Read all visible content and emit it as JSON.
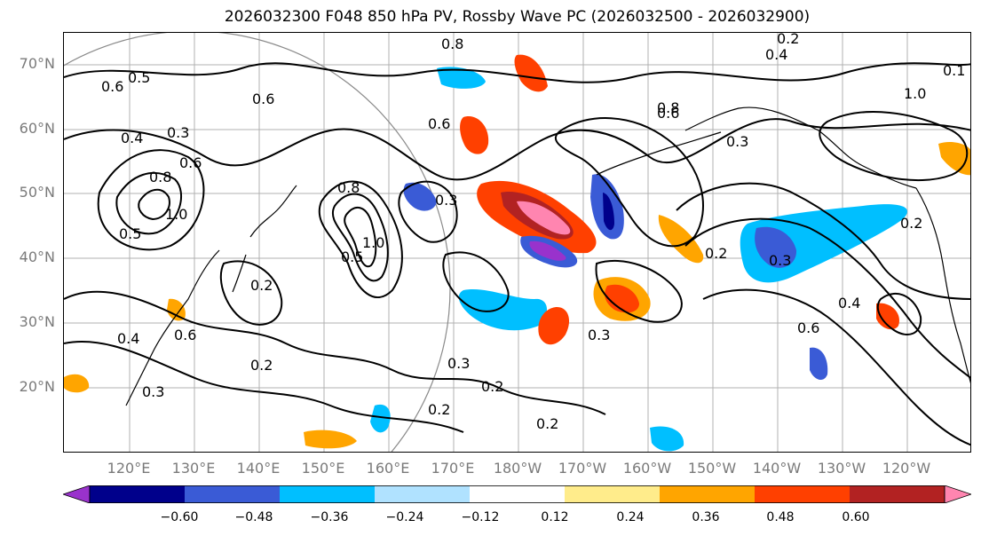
{
  "title": "2026032300 F048 850 hPa PV, Rossby Wave PC (2026032500 - 2026032900)",
  "lat_labels": [
    "70°N",
    "60°N",
    "50°N",
    "40°N",
    "30°N",
    "20°N"
  ],
  "lon_labels": [
    "120°E",
    "130°E",
    "140°E",
    "150°E",
    "160°E",
    "170°E",
    "180°W",
    "170°W",
    "160°W",
    "150°W",
    "140°W",
    "130°W",
    "120°W"
  ],
  "contour_labels": [
    "0.8",
    "0.2",
    "0.4",
    "0.6",
    "0.5",
    "0.6",
    "0.3",
    "0.4",
    "0.6",
    "0.8",
    "1.0",
    "0.5",
    "1.0",
    "0.3",
    "0.6",
    "0.8",
    "0.2",
    "0.5",
    "0.6",
    "0.8",
    "0.3",
    "0.2",
    "0.3",
    "0.6",
    "0.2",
    "0.3",
    "0.2",
    "0.2",
    "0.3",
    "0.2",
    "0.3",
    "0.4",
    "0.6",
    "0.4",
    "0.1",
    "1.0",
    "0.2"
  ],
  "colorbar": {
    "colors": [
      "#9932cc",
      "#00008b",
      "#3a5bd6",
      "#00bfff",
      "#b0e2ff",
      "#ffffff",
      "#ffec8b",
      "#ffa500",
      "#ff4000",
      "#b22222",
      "#ff85b0"
    ],
    "ticks": [
      "−0.60",
      "−0.48",
      "−0.36",
      "−0.24",
      "−0.12",
      "0.12",
      "0.24",
      "0.36",
      "0.48",
      "0.60"
    ]
  }
}
